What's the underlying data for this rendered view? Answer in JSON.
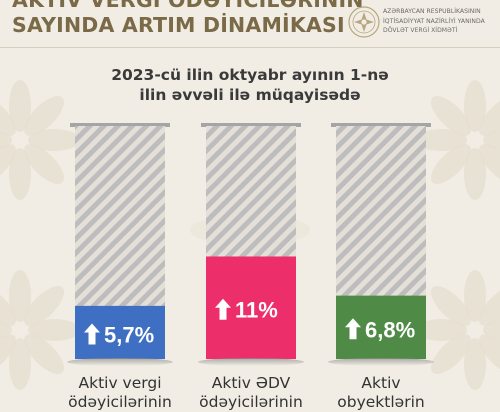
{
  "title": {
    "line1": "AKTİV VERGİ ÖDƏYİCİLƏRİNİN",
    "line2": "SAYINDA ARTIM DİNAMİKASI"
  },
  "subtitle": {
    "line1": "2023-cü ilin oktyabr ayının 1-nə",
    "line2": "ilin əvvəli ilə müqayisədə"
  },
  "logo": {
    "lines": [
      "AZƏRBAYCAN RESPUBLİKASININ",
      "İQTİSADİYYAT NAZİRLİYİ YANINDA",
      "DÖVLƏT VERGİ XİDMƏTİ"
    ],
    "icon": "state-emblem-icon"
  },
  "colors": {
    "background": "#f1ede4",
    "title": "#7a6a47",
    "bar_blue": "#3f6fc2",
    "bar_pink": "#ec2f6b",
    "bar_green": "#4f8b47",
    "stripe": "#bcbcbc",
    "top_cap": "#a5a5a5"
  },
  "chart_data": {
    "type": "bar",
    "categories": [
      "Aktiv vergi ödəyicilərinin",
      "Aktiv ƏDV ödəyicilərinin",
      "Aktiv obyektlərin"
    ],
    "values": [
      5.7,
      11,
      6.8
    ],
    "value_labels": [
      "5,7%",
      "11%",
      "6,8%"
    ],
    "colors": [
      "#3f6fc2",
      "#ec2f6b",
      "#4f8b47"
    ],
    "label_lines": [
      [
        "Aktiv vergi",
        "ödəyicilərinin"
      ],
      [
        "Aktiv ƏDV",
        "ödəyicilərinin"
      ],
      [
        "Aktiv",
        "obyektlərin"
      ]
    ],
    "ylim": [
      0,
      25
    ],
    "grid": false,
    "legend": "none",
    "icon": "arrow-up-icon"
  }
}
